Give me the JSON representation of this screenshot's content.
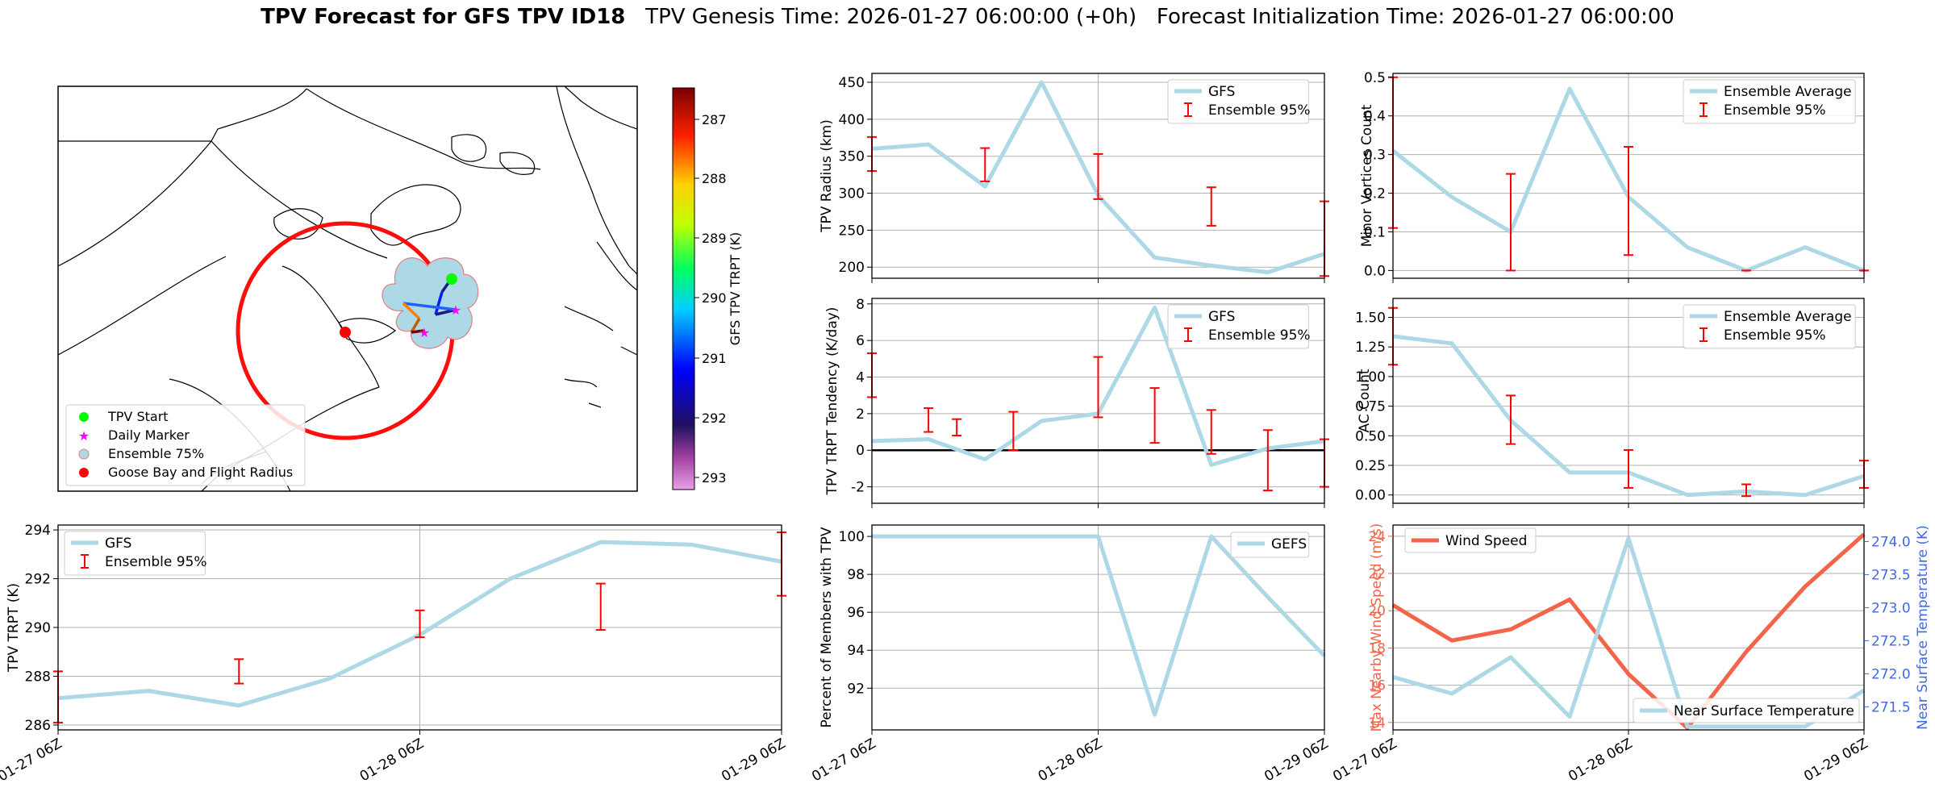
{
  "title": {
    "bold": "TPV Forecast for GFS TPV ID18",
    "rest": "   TPV Genesis Time: 2026-01-27 06:00:00 (+0h)   Forecast Initialization Time: 2026-01-27 06:00:00"
  },
  "colors": {
    "gfs_line": "#add8e6",
    "errorbar": "#ff0000",
    "wind": "#f4644b",
    "temp": "#4169e1",
    "grid": "#b0b0b0"
  },
  "time_ticks": [
    "01-27 06Z",
    "01-28 06Z",
    "01-29 06Z"
  ],
  "map": {
    "colorbar_label": "GFS TPV TRPT (K)",
    "colorbar_ticks": [
      "287",
      "288",
      "289",
      "290",
      "291",
      "292",
      "293"
    ],
    "legend": [
      "TPV Start",
      "Daily Marker",
      "Ensemble 75%",
      "Goose Bay and Flight Radius"
    ]
  },
  "chart_data": [
    {
      "id": "radius",
      "type": "line",
      "ylabel": "TPV Radius (km)",
      "ylim": [
        185,
        462
      ],
      "yticks": [
        200,
        250,
        300,
        350,
        400,
        450
      ],
      "x": [
        0,
        0.25,
        0.5,
        0.75,
        1.0,
        1.25,
        1.5,
        1.75,
        2.0
      ],
      "series": [
        {
          "name": "GFS",
          "values": [
            360,
            366,
            309,
            450,
            297,
            213,
            202,
            193,
            218
          ]
        }
      ],
      "errorbars": [
        {
          "x": 0,
          "lo": 330,
          "hi": 376
        },
        {
          "x": 0.5,
          "lo": 316,
          "hi": 361
        },
        {
          "x": 1.0,
          "lo": 292,
          "hi": 353
        },
        {
          "x": 1.5,
          "lo": 256,
          "hi": 308
        },
        {
          "x": 2.0,
          "lo": 188,
          "hi": 289
        }
      ],
      "legend": [
        "GFS",
        "Ensemble 95%"
      ],
      "legend_pos": "top-right",
      "grid": true
    },
    {
      "id": "tendency",
      "type": "line",
      "ylabel": "TPV TRPT Tendency (K/day)",
      "ylim": [
        -2.9,
        8.3
      ],
      "yticks": [
        -2,
        0,
        2,
        4,
        6,
        8
      ],
      "zero_line": true,
      "x": [
        0,
        0.25,
        0.5,
        0.75,
        1.0,
        1.25,
        1.5,
        1.75,
        2.0
      ],
      "series": [
        {
          "name": "GFS",
          "values": [
            0.5,
            0.6,
            -0.5,
            1.6,
            2.0,
            7.8,
            -0.8,
            0.1,
            0.5
          ]
        }
      ],
      "errorbars": [
        {
          "x": 0,
          "lo": 2.9,
          "hi": 5.3
        },
        {
          "x": 0.25,
          "lo": 1.0,
          "hi": 2.3
        },
        {
          "x": 0.375,
          "lo": 0.8,
          "hi": 1.7
        },
        {
          "x": 0.625,
          "lo": 0.0,
          "hi": 2.1
        },
        {
          "x": 1.0,
          "lo": 1.8,
          "hi": 5.1
        },
        {
          "x": 1.25,
          "lo": 0.4,
          "hi": 3.4
        },
        {
          "x": 1.5,
          "lo": -0.2,
          "hi": 2.2
        },
        {
          "x": 1.75,
          "lo": -2.2,
          "hi": 1.1
        },
        {
          "x": 2.0,
          "lo": -2.0,
          "hi": 0.6
        }
      ],
      "legend": [
        "GFS",
        "Ensemble 95%"
      ],
      "legend_pos": "top-right",
      "grid": true
    },
    {
      "id": "members",
      "type": "line",
      "ylabel": "Percent of Members with TPV",
      "ylim": [
        89.8,
        100.6
      ],
      "yticks": [
        92,
        94,
        96,
        98,
        100
      ],
      "x": [
        0,
        0.25,
        0.5,
        0.75,
        1.0,
        1.25,
        1.5,
        1.75,
        2.0
      ],
      "series": [
        {
          "name": "GEFS",
          "values": [
            100,
            100,
            100,
            100,
            100,
            90.6,
            100,
            96.8,
            93.7
          ]
        }
      ],
      "legend": [
        "GEFS"
      ],
      "legend_pos": "top-right",
      "grid": true
    },
    {
      "id": "minor",
      "type": "line",
      "ylabel": "Minor Vortices Count",
      "ylim": [
        -0.02,
        0.51
      ],
      "yticks": [
        0.0,
        0.1,
        0.2,
        0.3,
        0.4,
        0.5
      ],
      "x": [
        0,
        0.25,
        0.5,
        0.75,
        1.0,
        1.25,
        1.5,
        1.75,
        2.0
      ],
      "series": [
        {
          "name": "Ensemble Average",
          "values": [
            0.31,
            0.19,
            0.1,
            0.47,
            0.19,
            0.06,
            0.0,
            0.06,
            0.0
          ]
        }
      ],
      "errorbars": [
        {
          "x": 0,
          "lo": 0.11,
          "hi": 0.5
        },
        {
          "x": 0.5,
          "lo": 0.0,
          "hi": 0.25
        },
        {
          "x": 1.0,
          "lo": 0.04,
          "hi": 0.32
        },
        {
          "x": 1.5,
          "lo": 0.0,
          "hi": 0.0
        },
        {
          "x": 2.0,
          "lo": 0.0,
          "hi": 0.0
        }
      ],
      "legend": [
        "Ensemble Average",
        "Ensemble 95%"
      ],
      "legend_pos": "top-right",
      "grid": true
    },
    {
      "id": "ac",
      "type": "line",
      "ylabel": "AC Count",
      "ylim": [
        -0.07,
        1.66
      ],
      "yticks": [
        0.0,
        0.25,
        0.5,
        0.75,
        1.0,
        1.25,
        1.5
      ],
      "x": [
        0,
        0.25,
        0.5,
        0.75,
        1.0,
        1.25,
        1.5,
        1.75,
        2.0
      ],
      "series": [
        {
          "name": "Ensemble Average",
          "values": [
            1.34,
            1.28,
            0.63,
            0.19,
            0.19,
            0.0,
            0.03,
            0.0,
            0.16
          ]
        }
      ],
      "errorbars": [
        {
          "x": 0,
          "lo": 1.1,
          "hi": 1.58
        },
        {
          "x": 0.5,
          "lo": 0.43,
          "hi": 0.84
        },
        {
          "x": 1.0,
          "lo": 0.06,
          "hi": 0.38
        },
        {
          "x": 1.5,
          "lo": -0.01,
          "hi": 0.09
        },
        {
          "x": 2.0,
          "lo": 0.06,
          "hi": 0.29
        }
      ],
      "legend": [
        "Ensemble Average",
        "Ensemble 95%"
      ],
      "legend_pos": "top-right",
      "grid": true
    },
    {
      "id": "trpt",
      "type": "line",
      "ylabel": "TPV TRPT (K)",
      "ylim": [
        285.8,
        294.2
      ],
      "yticks": [
        286,
        288,
        290,
        292,
        294
      ],
      "x": [
        0,
        0.25,
        0.5,
        0.75,
        1.0,
        1.25,
        1.5,
        1.75,
        2.0
      ],
      "series": [
        {
          "name": "GFS",
          "values": [
            287.1,
            287.4,
            286.8,
            287.9,
            289.7,
            292.0,
            293.5,
            293.4,
            292.7
          ]
        }
      ],
      "errorbars": [
        {
          "x": 0,
          "lo": 286.1,
          "hi": 288.2
        },
        {
          "x": 0.5,
          "lo": 287.7,
          "hi": 288.7
        },
        {
          "x": 1.0,
          "lo": 289.6,
          "hi": 290.7
        },
        {
          "x": 1.5,
          "lo": 289.9,
          "hi": 291.8
        },
        {
          "x": 2.0,
          "lo": 291.3,
          "hi": 293.9
        }
      ],
      "legend": [
        "GFS",
        "Ensemble 95%"
      ],
      "legend_pos": "top-left",
      "grid": true
    },
    {
      "id": "wind",
      "type": "line",
      "ylabel": "Max Nearby Wind Speed (m/s)",
      "ylim": [
        13.6,
        24.6
      ],
      "yticks": [
        14,
        16,
        18,
        20,
        22,
        24
      ],
      "y2label": "Near Surface Temperature (K)",
      "y2lim": [
        271.15,
        274.25
      ],
      "y2ticks": [
        271.5,
        272.0,
        272.5,
        273.0,
        273.5,
        274.0
      ],
      "x": [
        0,
        0.25,
        0.5,
        0.75,
        1.0,
        1.25,
        1.5,
        1.75,
        2.0
      ],
      "series": [
        {
          "name": "Wind Speed",
          "axis": "left",
          "values": [
            20.3,
            18.4,
            19.0,
            20.6,
            16.6,
            13.7,
            17.8,
            21.3,
            24.1
          ]
        },
        {
          "name": "Near Surface Temperature",
          "axis": "right",
          "values": [
            271.95,
            271.7,
            272.25,
            271.35,
            274.05,
            271.2,
            271.2,
            271.2,
            271.75
          ]
        }
      ],
      "legend": [
        "Wind Speed",
        "Near Surface Temperature"
      ],
      "grid": true
    }
  ]
}
